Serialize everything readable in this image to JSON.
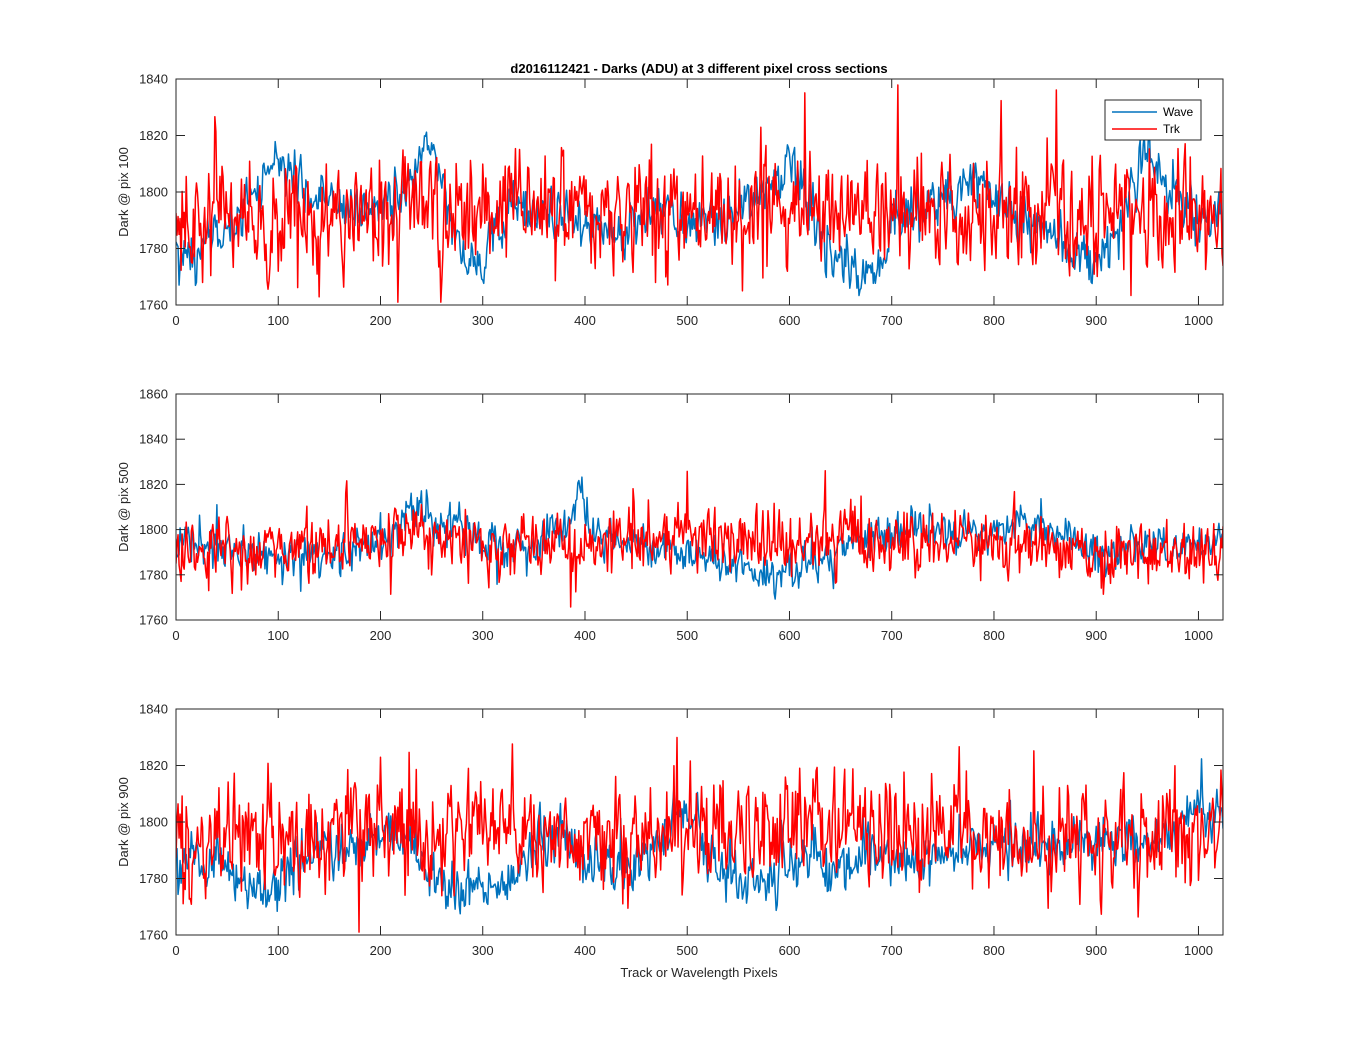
{
  "figure": {
    "title": "d2016112421 - Darks (ADU) at 3 different pixel cross sections",
    "xlabel": "Track or Wavelength Pixels"
  },
  "colors": {
    "wave": "#0072BD",
    "trk": "#FF0000",
    "axes": "#262626"
  },
  "legend": {
    "placement": "top-right",
    "entries": [
      "Wave",
      "Trk"
    ]
  },
  "chart_data": [
    {
      "type": "line",
      "ylabel": "Dark @ pix 100",
      "xlim": [
        0,
        1024
      ],
      "ylim": [
        1760,
        1840
      ],
      "xticks": [
        0,
        100,
        200,
        300,
        400,
        500,
        600,
        700,
        800,
        900,
        1000
      ],
      "yticks": [
        1760,
        1780,
        1800,
        1820,
        1840
      ],
      "grid": false,
      "series": [
        {
          "name": "Wave",
          "color": "#0072BD",
          "anchors": [
            [
              0,
              1778
            ],
            [
              30,
              1780
            ],
            [
              60,
              1790
            ],
            [
              85,
              1808
            ],
            [
              100,
              1810
            ],
            [
              130,
              1800
            ],
            [
              170,
              1793
            ],
            [
              200,
              1795
            ],
            [
              230,
              1800
            ],
            [
              240,
              1815
            ],
            [
              252,
              1812
            ],
            [
              270,
              1790
            ],
            [
              285,
              1775
            ],
            [
              300,
              1775
            ],
            [
              315,
              1785
            ],
            [
              330,
              1795
            ],
            [
              380,
              1792
            ],
            [
              400,
              1790
            ],
            [
              430,
              1785
            ],
            [
              480,
              1795
            ],
            [
              500,
              1785
            ],
            [
              540,
              1792
            ],
            [
              580,
              1800
            ],
            [
              605,
              1810
            ],
            [
              620,
              1795
            ],
            [
              640,
              1778
            ],
            [
              670,
              1770
            ],
            [
              690,
              1775
            ],
            [
              700,
              1790
            ],
            [
              730,
              1795
            ],
            [
              760,
              1800
            ],
            [
              790,
              1808
            ],
            [
              800,
              1798
            ],
            [
              830,
              1790
            ],
            [
              860,
              1785
            ],
            [
              880,
              1780
            ],
            [
              900,
              1772
            ],
            [
              910,
              1780
            ],
            [
              930,
              1795
            ],
            [
              940,
              1808
            ],
            [
              955,
              1814
            ],
            [
              970,
              1800
            ],
            [
              1000,
              1795
            ],
            [
              1024,
              1788
            ]
          ],
          "noise": 6,
          "spike_rate": 0.004
        },
        {
          "name": "Trk",
          "color": "#FF0000",
          "anchors": [
            [
              0,
              1790
            ],
            [
              200,
              1792
            ],
            [
              400,
              1793
            ],
            [
              600,
              1793
            ],
            [
              800,
              1792
            ],
            [
              1024,
              1793
            ]
          ],
          "noise": 13,
          "spike_rate": 0.006
        }
      ]
    },
    {
      "type": "line",
      "ylabel": "Dark @ pix 500",
      "xlim": [
        0,
        1024
      ],
      "ylim": [
        1760,
        1860
      ],
      "xticks": [
        0,
        100,
        200,
        300,
        400,
        500,
        600,
        700,
        800,
        900,
        1000
      ],
      "yticks": [
        1760,
        1780,
        1800,
        1820,
        1840,
        1860
      ],
      "grid": false,
      "series": [
        {
          "name": "Wave",
          "color": "#0072BD",
          "anchors": [
            [
              0,
              1795
            ],
            [
              50,
              1790
            ],
            [
              100,
              1788
            ],
            [
              150,
              1787
            ],
            [
              200,
              1795
            ],
            [
              230,
              1808
            ],
            [
              260,
              1805
            ],
            [
              300,
              1795
            ],
            [
              350,
              1790
            ],
            [
              380,
              1805
            ],
            [
              395,
              1812
            ],
            [
              410,
              1798
            ],
            [
              450,
              1793
            ],
            [
              500,
              1790
            ],
            [
              550,
              1782
            ],
            [
              580,
              1780
            ],
            [
              620,
              1785
            ],
            [
              660,
              1795
            ],
            [
              700,
              1800
            ],
            [
              750,
              1800
            ],
            [
              800,
              1800
            ],
            [
              840,
              1802
            ],
            [
              860,
              1798
            ],
            [
              900,
              1790
            ],
            [
              950,
              1792
            ],
            [
              1000,
              1792
            ],
            [
              1024,
              1800
            ]
          ],
          "noise": 6,
          "spike_rate": 0.003
        },
        {
          "name": "Trk",
          "color": "#FF0000",
          "anchors": [
            [
              0,
              1790
            ],
            [
              100,
              1790
            ],
            [
              200,
              1796
            ],
            [
              260,
              1800
            ],
            [
              300,
              1793
            ],
            [
              400,
              1795
            ],
            [
              500,
              1795
            ],
            [
              600,
              1797
            ],
            [
              700,
              1795
            ],
            [
              800,
              1793
            ],
            [
              900,
              1790
            ],
            [
              1024,
              1790
            ]
          ],
          "noise": 9,
          "spike_rate": 0.008
        }
      ]
    },
    {
      "type": "line",
      "ylabel": "Dark @ pix 900",
      "xlim": [
        0,
        1024
      ],
      "ylim": [
        1760,
        1840
      ],
      "xticks": [
        0,
        100,
        200,
        300,
        400,
        500,
        600,
        700,
        800,
        900,
        1000
      ],
      "yticks": [
        1760,
        1780,
        1800,
        1820,
        1840
      ],
      "grid": false,
      "series": [
        {
          "name": "Wave",
          "color": "#0072BD",
          "anchors": [
            [
              0,
              1790
            ],
            [
              40,
              1788
            ],
            [
              70,
              1775
            ],
            [
              90,
              1773
            ],
            [
              110,
              1785
            ],
            [
              150,
              1790
            ],
            [
              200,
              1795
            ],
            [
              230,
              1790
            ],
            [
              250,
              1780
            ],
            [
              280,
              1776
            ],
            [
              310,
              1773
            ],
            [
              330,
              1782
            ],
            [
              360,
              1795
            ],
            [
              380,
              1795
            ],
            [
              400,
              1785
            ],
            [
              440,
              1782
            ],
            [
              470,
              1790
            ],
            [
              490,
              1802
            ],
            [
              510,
              1797
            ],
            [
              540,
              1782
            ],
            [
              560,
              1778
            ],
            [
              580,
              1782
            ],
            [
              620,
              1790
            ],
            [
              650,
              1780
            ],
            [
              680,
              1790
            ],
            [
              720,
              1785
            ],
            [
              750,
              1790
            ],
            [
              800,
              1793
            ],
            [
              850,
              1790
            ],
            [
              900,
              1795
            ],
            [
              950,
              1793
            ],
            [
              980,
              1795
            ],
            [
              1000,
              1808
            ],
            [
              1024,
              1800
            ]
          ],
          "noise": 6,
          "spike_rate": 0.003
        },
        {
          "name": "Trk",
          "color": "#FF0000",
          "anchors": [
            [
              0,
              1793
            ],
            [
              200,
              1795
            ],
            [
              300,
              1798
            ],
            [
              400,
              1795
            ],
            [
              500,
              1797
            ],
            [
              600,
              1800
            ],
            [
              700,
              1797
            ],
            [
              800,
              1795
            ],
            [
              900,
              1795
            ],
            [
              1024,
              1795
            ]
          ],
          "noise": 12,
          "spike_rate": 0.007
        }
      ]
    }
  ]
}
